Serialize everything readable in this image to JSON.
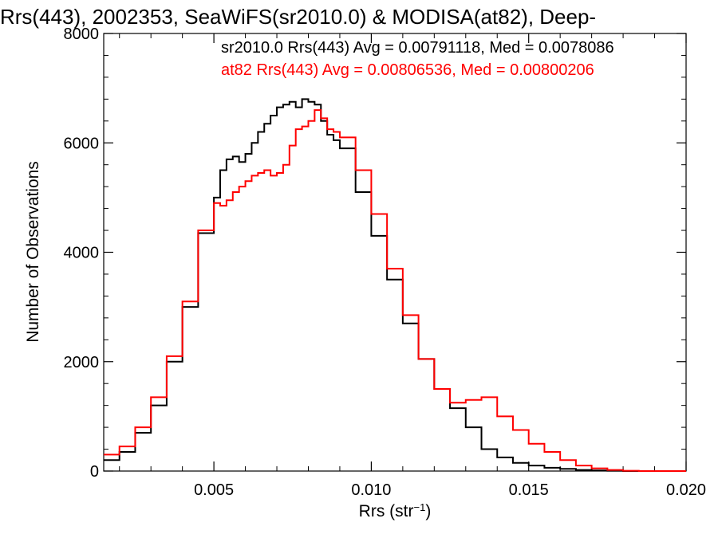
{
  "chart_data": {
    "type": "line",
    "title": "Rrs(443), 2002353, SeaWiFS(sr2010.0) & MODISA(at82), Deep-",
    "xlabel": {
      "main": "Rrs (str",
      "sup": "−1",
      "close": ")"
    },
    "ylabel": "Number of Observations",
    "xlim": [
      0.0015,
      0.02
    ],
    "ylim": [
      0,
      8000
    ],
    "xticks": [
      0.005,
      0.01,
      0.015,
      0.02
    ],
    "xtick_labels": [
      "0.005",
      "0.010",
      "0.015",
      "0.020"
    ],
    "yticks": [
      0,
      2000,
      4000,
      6000,
      8000
    ],
    "ytick_labels": [
      "0",
      "2000",
      "4000",
      "6000",
      "8000"
    ],
    "grid": false,
    "series": [
      {
        "name": "sr2010.0",
        "color": "#000000",
        "annotation": "sr2010.0 Rrs(443) Avg = 0.00791118, Med = 0.0078086",
        "x": [
          0.0015,
          0.002,
          0.0025,
          0.003,
          0.0035,
          0.004,
          0.0045,
          0.005,
          0.0052,
          0.0054,
          0.0056,
          0.0058,
          0.006,
          0.0062,
          0.0064,
          0.0066,
          0.0068,
          0.007,
          0.0072,
          0.0074,
          0.0076,
          0.0078,
          0.008,
          0.0082,
          0.0084,
          0.0086,
          0.0088,
          0.009,
          0.0095,
          0.01,
          0.0105,
          0.011,
          0.0115,
          0.012,
          0.0125,
          0.013,
          0.0135,
          0.014,
          0.0145,
          0.015,
          0.0155,
          0.016,
          0.0165,
          0.017,
          0.0175,
          0.018,
          0.0185,
          0.019,
          0.0195,
          0.02
        ],
        "y": [
          200,
          350,
          700,
          1200,
          2000,
          3000,
          4350,
          5000,
          5500,
          5700,
          5750,
          5650,
          5800,
          6000,
          6200,
          6350,
          6500,
          6650,
          6700,
          6750,
          6650,
          6800,
          6750,
          6700,
          6400,
          6150,
          6050,
          5900,
          5100,
          4300,
          3500,
          2700,
          2050,
          1500,
          1150,
          800,
          400,
          250,
          150,
          100,
          60,
          40,
          20,
          10,
          5,
          0,
          0,
          0,
          0,
          0
        ]
      },
      {
        "name": "at82",
        "color": "#ff0000",
        "annotation": "at82 Rrs(443) Avg = 0.00806536, Med = 0.00800206",
        "x": [
          0.0015,
          0.002,
          0.0025,
          0.003,
          0.0035,
          0.004,
          0.0045,
          0.005,
          0.0052,
          0.0054,
          0.0056,
          0.0058,
          0.006,
          0.0062,
          0.0064,
          0.0066,
          0.0068,
          0.007,
          0.0072,
          0.0074,
          0.0076,
          0.0078,
          0.008,
          0.0082,
          0.0084,
          0.0086,
          0.0088,
          0.009,
          0.0095,
          0.01,
          0.0105,
          0.011,
          0.0115,
          0.012,
          0.0125,
          0.013,
          0.0135,
          0.014,
          0.0145,
          0.015,
          0.0155,
          0.016,
          0.0165,
          0.017,
          0.0175,
          0.018,
          0.0185,
          0.019,
          0.0195,
          0.02
        ],
        "y": [
          300,
          450,
          800,
          1350,
          2100,
          3100,
          4400,
          4900,
          4850,
          4950,
          5100,
          5200,
          5300,
          5400,
          5450,
          5500,
          5400,
          5450,
          5600,
          5950,
          6250,
          6300,
          6400,
          6600,
          6450,
          6250,
          6200,
          6100,
          5500,
          4700,
          3700,
          2850,
          2050,
          1500,
          1250,
          1300,
          1350,
          1000,
          750,
          500,
          350,
          200,
          100,
          50,
          20,
          5,
          0,
          0,
          0,
          0
        ]
      }
    ]
  }
}
